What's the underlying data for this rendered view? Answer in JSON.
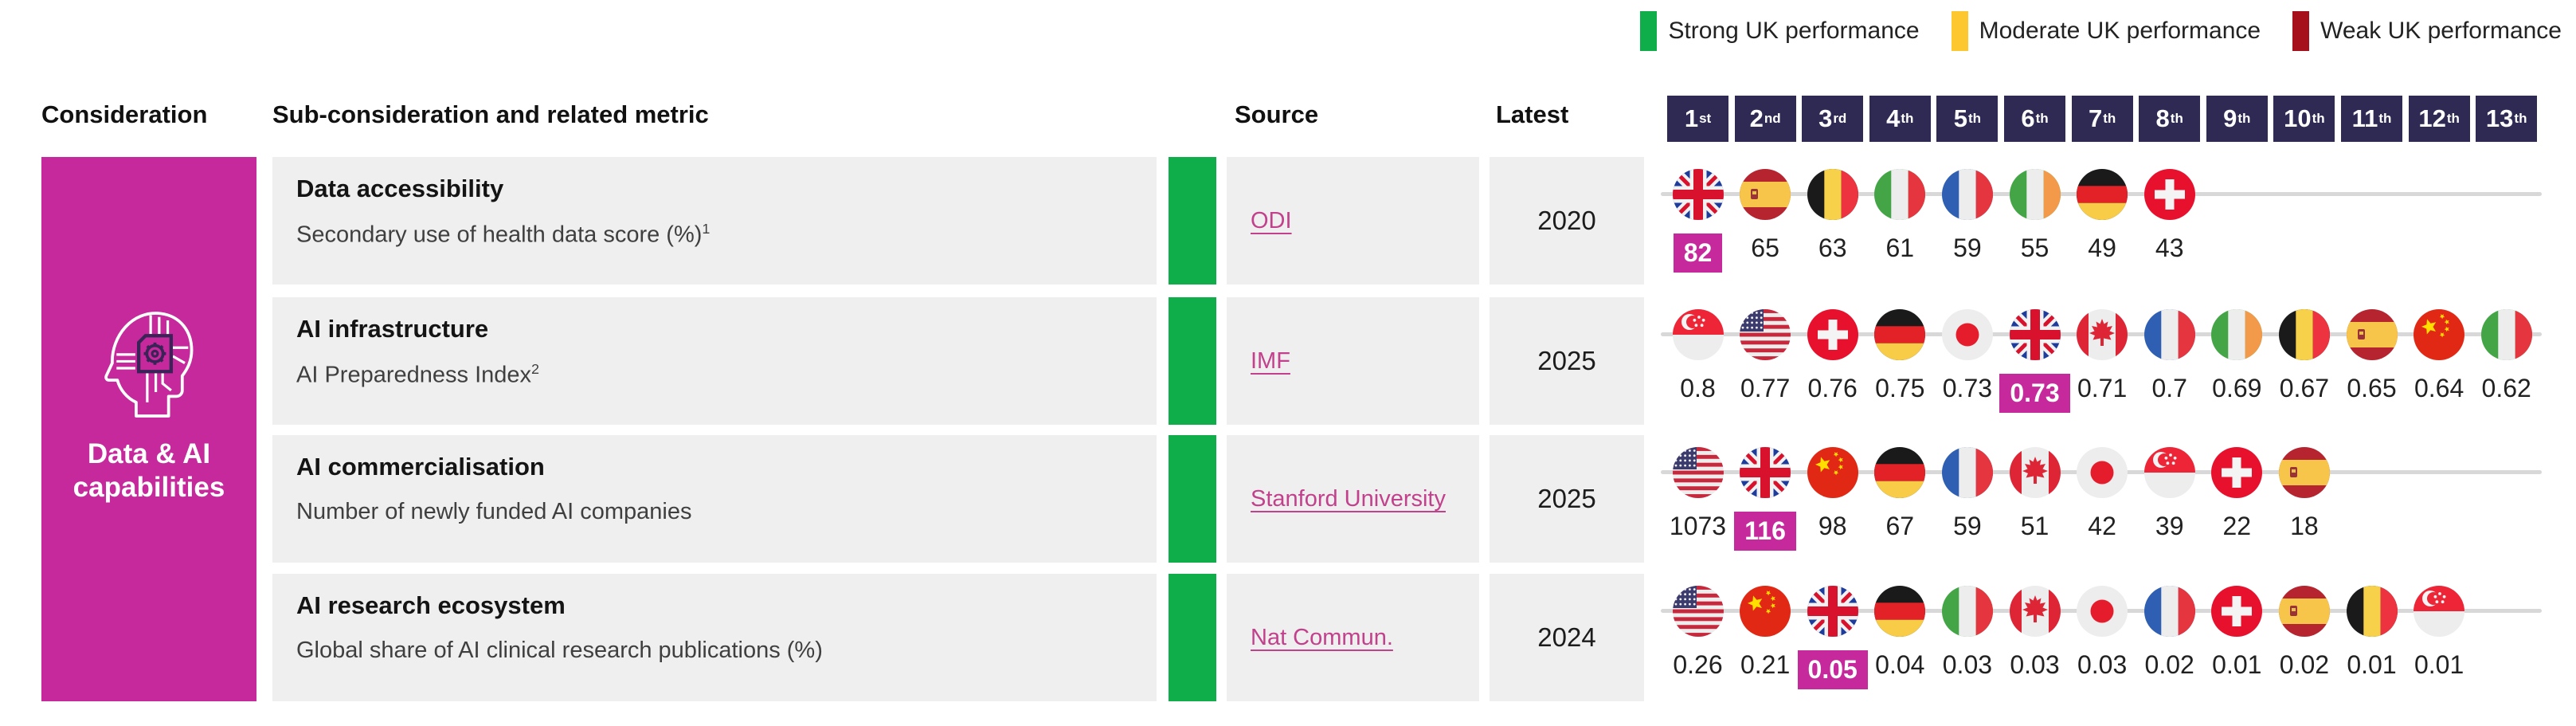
{
  "colors": {
    "accent_pink": "#c5299b",
    "rank_navy": "#2f2a54",
    "strong_green": "#0fae4b",
    "moderate_yellow": "#fdc82f",
    "weak_red": "#a6101d",
    "row_background": "#f0efef",
    "track_gray": "#d8d8d8",
    "link_pink": "#c2418c"
  },
  "legend": [
    {
      "label": "Strong UK performance",
      "color": "#0fae4b"
    },
    {
      "label": "Moderate UK performance",
      "color": "#fdc82f"
    },
    {
      "label": "Weak UK performance",
      "color": "#a6101d"
    }
  ],
  "header": {
    "consideration": "Consideration",
    "sub_consideration": "Sub-consideration and related metric",
    "source": "Source",
    "latest": "Latest",
    "ranks": [
      {
        "n": "1",
        "s": "st"
      },
      {
        "n": "2",
        "s": "nd"
      },
      {
        "n": "3",
        "s": "rd"
      },
      {
        "n": "4",
        "s": "th"
      },
      {
        "n": "5",
        "s": "th"
      },
      {
        "n": "6",
        "s": "th"
      },
      {
        "n": "7",
        "s": "th"
      },
      {
        "n": "8",
        "s": "th"
      },
      {
        "n": "9",
        "s": "th"
      },
      {
        "n": "10",
        "s": "th"
      },
      {
        "n": "11",
        "s": "th"
      },
      {
        "n": "12",
        "s": "th"
      },
      {
        "n": "13",
        "s": "th"
      }
    ]
  },
  "consideration": {
    "label": "Data & AI capabilities",
    "label_lines": [
      "Data & AI",
      "capabilities"
    ],
    "icon": "ai-head-icon"
  },
  "rows": [
    {
      "title": "Data accessibility",
      "metric": "Secondary use of health data score (%)",
      "metric_superscript": "1",
      "performance": "Strong UK performance",
      "source": {
        "label": "ODI"
      },
      "latest": "2020",
      "entries": [
        {
          "country": "United Kingdom",
          "flag": "gb",
          "value": "82",
          "highlight": true
        },
        {
          "country": "Spain",
          "flag": "es",
          "value": "65"
        },
        {
          "country": "Belgium",
          "flag": "be",
          "value": "63"
        },
        {
          "country": "Italy",
          "flag": "it",
          "value": "61"
        },
        {
          "country": "France",
          "flag": "fr",
          "value": "59"
        },
        {
          "country": "Ireland",
          "flag": "ie",
          "value": "55"
        },
        {
          "country": "Germany",
          "flag": "de",
          "value": "49"
        },
        {
          "country": "Switzerland",
          "flag": "ch",
          "value": "43"
        }
      ]
    },
    {
      "title": "AI infrastructure",
      "metric": "AI Preparedness Index",
      "metric_superscript": "2",
      "performance": "Strong UK performance",
      "source": {
        "label": "IMF"
      },
      "latest": "2025",
      "entries": [
        {
          "country": "Singapore",
          "flag": "sg",
          "value": "0.8"
        },
        {
          "country": "United States",
          "flag": "us",
          "value": "0.77"
        },
        {
          "country": "Switzerland",
          "flag": "ch",
          "value": "0.76"
        },
        {
          "country": "Germany",
          "flag": "de",
          "value": "0.75"
        },
        {
          "country": "Japan",
          "flag": "jp",
          "value": "0.73"
        },
        {
          "country": "United Kingdom",
          "flag": "gb",
          "value": "0.73",
          "highlight": true
        },
        {
          "country": "Canada",
          "flag": "ca",
          "value": "0.71"
        },
        {
          "country": "France",
          "flag": "fr",
          "value": "0.7"
        },
        {
          "country": "Ireland",
          "flag": "ie",
          "value": "0.69"
        },
        {
          "country": "Belgium",
          "flag": "be",
          "value": "0.67"
        },
        {
          "country": "Spain",
          "flag": "es",
          "value": "0.65"
        },
        {
          "country": "China",
          "flag": "cn",
          "value": "0.64"
        },
        {
          "country": "Italy",
          "flag": "it",
          "value": "0.62"
        }
      ]
    },
    {
      "title": "AI commercialisation",
      "metric": "Number of newly funded AI companies",
      "metric_superscript": "",
      "performance": "Strong UK performance",
      "source": {
        "label": "Stanford University"
      },
      "latest": "2025",
      "entries": [
        {
          "country": "United States",
          "flag": "us",
          "value": "1073"
        },
        {
          "country": "United Kingdom",
          "flag": "gb",
          "value": "116",
          "highlight": true
        },
        {
          "country": "China",
          "flag": "cn",
          "value": "98"
        },
        {
          "country": "Germany",
          "flag": "de",
          "value": "67"
        },
        {
          "country": "France",
          "flag": "fr",
          "value": "59"
        },
        {
          "country": "Canada",
          "flag": "ca",
          "value": "51"
        },
        {
          "country": "Japan",
          "flag": "jp",
          "value": "42"
        },
        {
          "country": "Singapore",
          "flag": "sg",
          "value": "39"
        },
        {
          "country": "Switzerland",
          "flag": "ch",
          "value": "22"
        },
        {
          "country": "Spain",
          "flag": "es",
          "value": "18"
        }
      ]
    },
    {
      "title": "AI research ecosystem",
      "metric": "Global share of AI clinical research publications (%)",
      "metric_superscript": "",
      "performance": "Strong UK performance",
      "source": {
        "label": "Nat Commun."
      },
      "latest": "2024",
      "entries": [
        {
          "country": "United States",
          "flag": "us",
          "value": "0.26"
        },
        {
          "country": "China",
          "flag": "cn",
          "value": "0.21"
        },
        {
          "country": "United Kingdom",
          "flag": "gb",
          "value": "0.05",
          "highlight": true
        },
        {
          "country": "Germany",
          "flag": "de",
          "value": "0.04"
        },
        {
          "country": "Italy",
          "flag": "it",
          "value": "0.03"
        },
        {
          "country": "Canada",
          "flag": "ca",
          "value": "0.03"
        },
        {
          "country": "Japan",
          "flag": "jp",
          "value": "0.03"
        },
        {
          "country": "France",
          "flag": "fr",
          "value": "0.02"
        },
        {
          "country": "Switzerland",
          "flag": "ch",
          "value": "0.01"
        },
        {
          "country": "Spain",
          "flag": "es",
          "value": "0.02"
        },
        {
          "country": "Belgium",
          "flag": "be",
          "value": "0.01"
        },
        {
          "country": "Singapore",
          "flag": "sg",
          "value": "0.01"
        }
      ]
    }
  ],
  "chart_data": [
    {
      "type": "scatter",
      "title": "Data accessibility",
      "subtitle": "Secondary use of health data score (%)",
      "source": "ODI",
      "year": "2020",
      "categories": [
        "United Kingdom",
        "Spain",
        "Belgium",
        "Italy",
        "France",
        "Ireland",
        "Germany",
        "Switzerland"
      ],
      "values": [
        82,
        65,
        63,
        61,
        59,
        55,
        49,
        43
      ],
      "highlight": "United Kingdom",
      "uk_rank": 1,
      "uk_performance": "strong"
    },
    {
      "type": "scatter",
      "title": "AI infrastructure",
      "subtitle": "AI Preparedness Index",
      "source": "IMF",
      "year": "2025",
      "categories": [
        "Singapore",
        "United States",
        "Switzerland",
        "Germany",
        "Japan",
        "United Kingdom",
        "Canada",
        "France",
        "Ireland",
        "Belgium",
        "Spain",
        "China",
        "Italy"
      ],
      "values": [
        0.8,
        0.77,
        0.76,
        0.75,
        0.73,
        0.73,
        0.71,
        0.7,
        0.69,
        0.67,
        0.65,
        0.64,
        0.62
      ],
      "highlight": "United Kingdom",
      "uk_rank": 6,
      "uk_performance": "strong"
    },
    {
      "type": "scatter",
      "title": "AI commercialisation",
      "subtitle": "Number of newly funded AI companies",
      "source": "Stanford University",
      "year": "2025",
      "categories": [
        "United States",
        "United Kingdom",
        "China",
        "Germany",
        "France",
        "Canada",
        "Japan",
        "Singapore",
        "Switzerland",
        "Spain"
      ],
      "values": [
        1073,
        116,
        98,
        67,
        59,
        51,
        42,
        39,
        22,
        18
      ],
      "highlight": "United Kingdom",
      "uk_rank": 2,
      "uk_performance": "strong"
    },
    {
      "type": "scatter",
      "title": "AI research ecosystem",
      "subtitle": "Global share of AI clinical research publications (%)",
      "source": "Nat Commun.",
      "year": "2024",
      "categories": [
        "United States",
        "China",
        "United Kingdom",
        "Germany",
        "Italy",
        "Canada",
        "Japan",
        "France",
        "Switzerland",
        "Spain",
        "Belgium",
        "Singapore"
      ],
      "values": [
        0.26,
        0.21,
        0.05,
        0.04,
        0.03,
        0.03,
        0.03,
        0.02,
        0.01,
        0.02,
        0.01,
        0.01
      ],
      "highlight": "United Kingdom",
      "uk_rank": 3,
      "uk_performance": "strong"
    }
  ]
}
